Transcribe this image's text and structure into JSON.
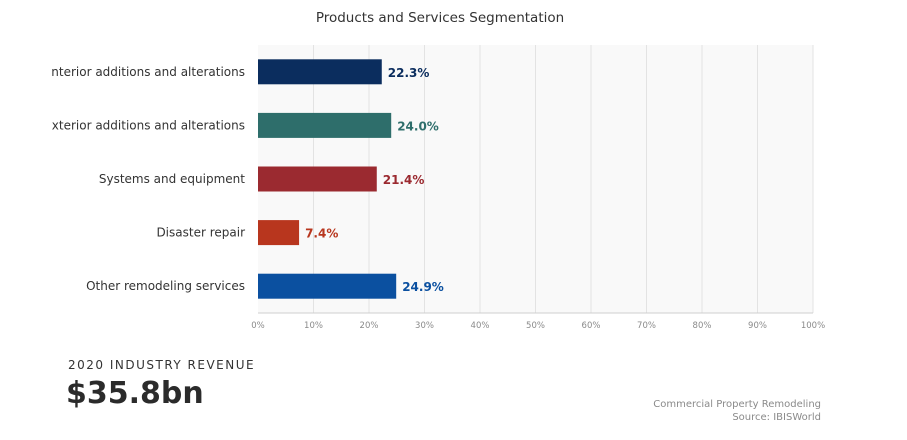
{
  "chart_data": {
    "type": "bar",
    "orientation": "horizontal",
    "title": "Products and Services Segmentation",
    "categories": [
      "nterior additions and alterations",
      "xterior additions and alterations",
      "Systems and equipment",
      "Disaster repair",
      "Other remodeling services"
    ],
    "values": [
      22.3,
      24.0,
      21.4,
      7.4,
      24.9
    ],
    "value_labels": [
      "22.3%",
      "24.0%",
      "21.4%",
      "7.4%",
      "24.9%"
    ],
    "colors": [
      "#0b2d5e",
      "#2e6e6b",
      "#9b2a30",
      "#b8361e",
      "#0b50a0"
    ],
    "xlim": [
      0,
      100
    ],
    "x_ticks": [
      "0%",
      "10%",
      "20%",
      "30%",
      "40%",
      "50%",
      "60%",
      "70%",
      "80%",
      "90%",
      "100%"
    ],
    "grid": true,
    "legend": "none"
  },
  "summary": {
    "revenue_label": "2020 INDUSTRY REVENUE",
    "revenue_value": "$35.8bn"
  },
  "footer": {
    "industry": "Commercial Property Remodeling",
    "source": "Source: IBISWorld"
  }
}
